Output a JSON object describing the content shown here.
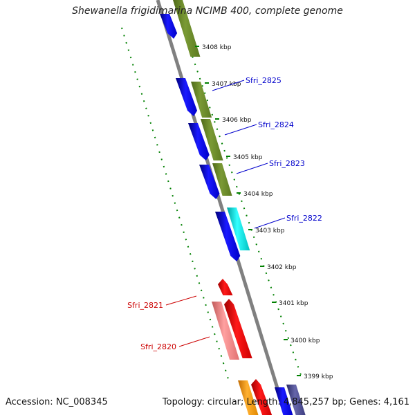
{
  "title": "Shewanella frigidimarina NCIMB 400, complete genome",
  "footer": {
    "accession": "Accession: NC_008345",
    "summary": "Topology: circular; Length: 4,845,257 bp; Genes: 4,161"
  },
  "scale_labels": [
    "3408 kbp",
    "3407 kbp",
    "3406 kbp",
    "3405 kbp",
    "3404 kbp",
    "3403 kbp",
    "3402 kbp",
    "3401 kbp",
    "3400 kbp",
    "3399 kbp"
  ],
  "genes": [
    {
      "label": "Sfri_2825",
      "color": "#0000cc"
    },
    {
      "label": "Sfri_2824",
      "color": "#0000cc"
    },
    {
      "label": "Sfri_2823",
      "color": "#0000cc"
    },
    {
      "label": "Sfri_2822",
      "color": "#0000cc"
    },
    {
      "label": "Sfri_2821",
      "color": "#cc0000"
    },
    {
      "label": "Sfri_2820",
      "color": "#cc0000"
    }
  ],
  "colors": {
    "forward_strand": "#0000ff",
    "reverse_strand": "#ff0000",
    "cog_green": "#6b8e23",
    "cog_cyan": "#00cccc",
    "cog_pink": "#f08080",
    "cog_orange": "#ff9900",
    "cog_purple": "#555599",
    "backbone": "#808080",
    "ticks": "#008000"
  }
}
